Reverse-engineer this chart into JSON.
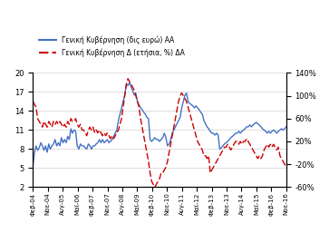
{
  "legend1": "Γενική Κυβέρνηση (δις ευρώ) ΑΑ",
  "legend2": "Γενική Κυβέρνηση Δ (ετήσια, %) ΔΑ",
  "blue_color": "#4472C4",
  "red_color": "#CC0000",
  "left_ylim": [
    2,
    20
  ],
  "right_ylim": [
    -60,
    140
  ],
  "left_yticks": [
    2,
    5,
    8,
    11,
    14,
    17,
    20
  ],
  "right_yticks": [
    -60,
    -20,
    20,
    60,
    100,
    140
  ],
  "right_yticklabels": [
    "-60%",
    "-20%",
    "20%",
    "60%",
    "100%",
    "140%"
  ],
  "xtick_labels": [
    "Φεβ-04",
    "Νοε-04",
    "Αυγ-05",
    "Μαϊ-06",
    "Φεβ-07",
    "Νοε-07",
    "Αυγ-08",
    "Μαϊ-09",
    "Φεβ-10",
    "Νοε-10",
    "Αυγ-11",
    "Μαϊ-12",
    "Φεβ-13",
    "Νοε-13",
    "Αυγ-14",
    "Μαϊ-15",
    "Φεβ-16",
    "Νοε-16"
  ],
  "blue_data": [
    5.2,
    7.5,
    8.5,
    7.8,
    8.2,
    9.0,
    8.5,
    7.8,
    8.5,
    7.5,
    8.8,
    8.0,
    8.5,
    8.8,
    9.5,
    8.5,
    9.0,
    8.5,
    9.8,
    9.0,
    9.5,
    9.0,
    10.0,
    9.5,
    11.2,
    10.5,
    11.0,
    10.8,
    8.5,
    8.0,
    8.8,
    8.5,
    8.5,
    8.2,
    8.0,
    8.8,
    8.5,
    8.0,
    8.5,
    8.5,
    8.8,
    9.0,
    9.5,
    9.0,
    9.5,
    9.0,
    9.2,
    9.5,
    9.0,
    9.2,
    9.5,
    10.0,
    10.5,
    11.0,
    12.5,
    13.5,
    14.5,
    15.5,
    16.5,
    18.2,
    18.0,
    18.5,
    17.8,
    17.2,
    16.5,
    16.8,
    15.5,
    15.0,
    14.5,
    14.2,
    13.8,
    13.5,
    13.0,
    12.8,
    9.5,
    9.2,
    9.5,
    9.8,
    9.5,
    9.5,
    9.2,
    9.5,
    9.8,
    10.5,
    9.8,
    8.5,
    8.8,
    9.5,
    10.5,
    11.0,
    11.5,
    12.0,
    12.5,
    13.0,
    14.5,
    15.5,
    16.5,
    16.8,
    15.5,
    15.2,
    15.0,
    14.8,
    14.5,
    14.8,
    14.5,
    14.2,
    13.8,
    13.5,
    12.5,
    12.0,
    11.5,
    11.2,
    10.8,
    10.5,
    10.5,
    10.2,
    10.5,
    10.2,
    8.0,
    8.2,
    8.5,
    8.8,
    9.0,
    9.2,
    9.5,
    9.8,
    10.0,
    10.2,
    10.5,
    10.5,
    10.8,
    10.5,
    10.8,
    11.0,
    11.2,
    11.5,
    11.5,
    11.8,
    11.5,
    11.8,
    12.0,
    12.2,
    12.0,
    11.8,
    11.5,
    11.2,
    11.0,
    10.8,
    10.5,
    10.8,
    10.5,
    10.8,
    11.0,
    10.8,
    10.5,
    10.8,
    11.0,
    11.2,
    11.0,
    11.2,
    11.5,
    11.5,
    11.8,
    11.5,
    11.8,
    12.0,
    12.5
  ],
  "red_data": [
    90,
    85,
    80,
    60,
    55,
    50,
    45,
    55,
    50,
    45,
    55,
    50,
    45,
    55,
    50,
    55,
    50,
    55,
    50,
    45,
    50,
    45,
    55,
    50,
    60,
    55,
    55,
    60,
    50,
    45,
    50,
    40,
    40,
    35,
    30,
    40,
    45,
    40,
    45,
    35,
    40,
    35,
    40,
    35,
    30,
    35,
    30,
    35,
    30,
    25,
    30,
    25,
    30,
    35,
    40,
    50,
    60,
    80,
    100,
    120,
    130,
    125,
    120,
    115,
    110,
    100,
    90,
    80,
    60,
    45,
    30,
    15,
    0,
    -15,
    -35,
    -50,
    -55,
    -60,
    -55,
    -50,
    -45,
    -35,
    -35,
    -30,
    -25,
    -15,
    0,
    15,
    30,
    45,
    60,
    75,
    90,
    100,
    105,
    100,
    95,
    90,
    80,
    70,
    60,
    50,
    40,
    30,
    20,
    15,
    10,
    5,
    -5,
    -5,
    -10,
    -5,
    -35,
    -30,
    -25,
    -20,
    -15,
    -10,
    -5,
    0,
    5,
    10,
    10,
    15,
    10,
    5,
    10,
    15,
    20,
    20,
    15,
    20,
    15,
    20,
    20,
    25,
    20,
    15,
    10,
    5,
    0,
    -5,
    -10,
    -5,
    -10,
    -5,
    5,
    10,
    15,
    10,
    15,
    10,
    15,
    10,
    5,
    10,
    -5,
    -10,
    -15,
    -20,
    -25
  ],
  "figsize": [
    3.63,
    2.68
  ],
  "dpi": 100
}
